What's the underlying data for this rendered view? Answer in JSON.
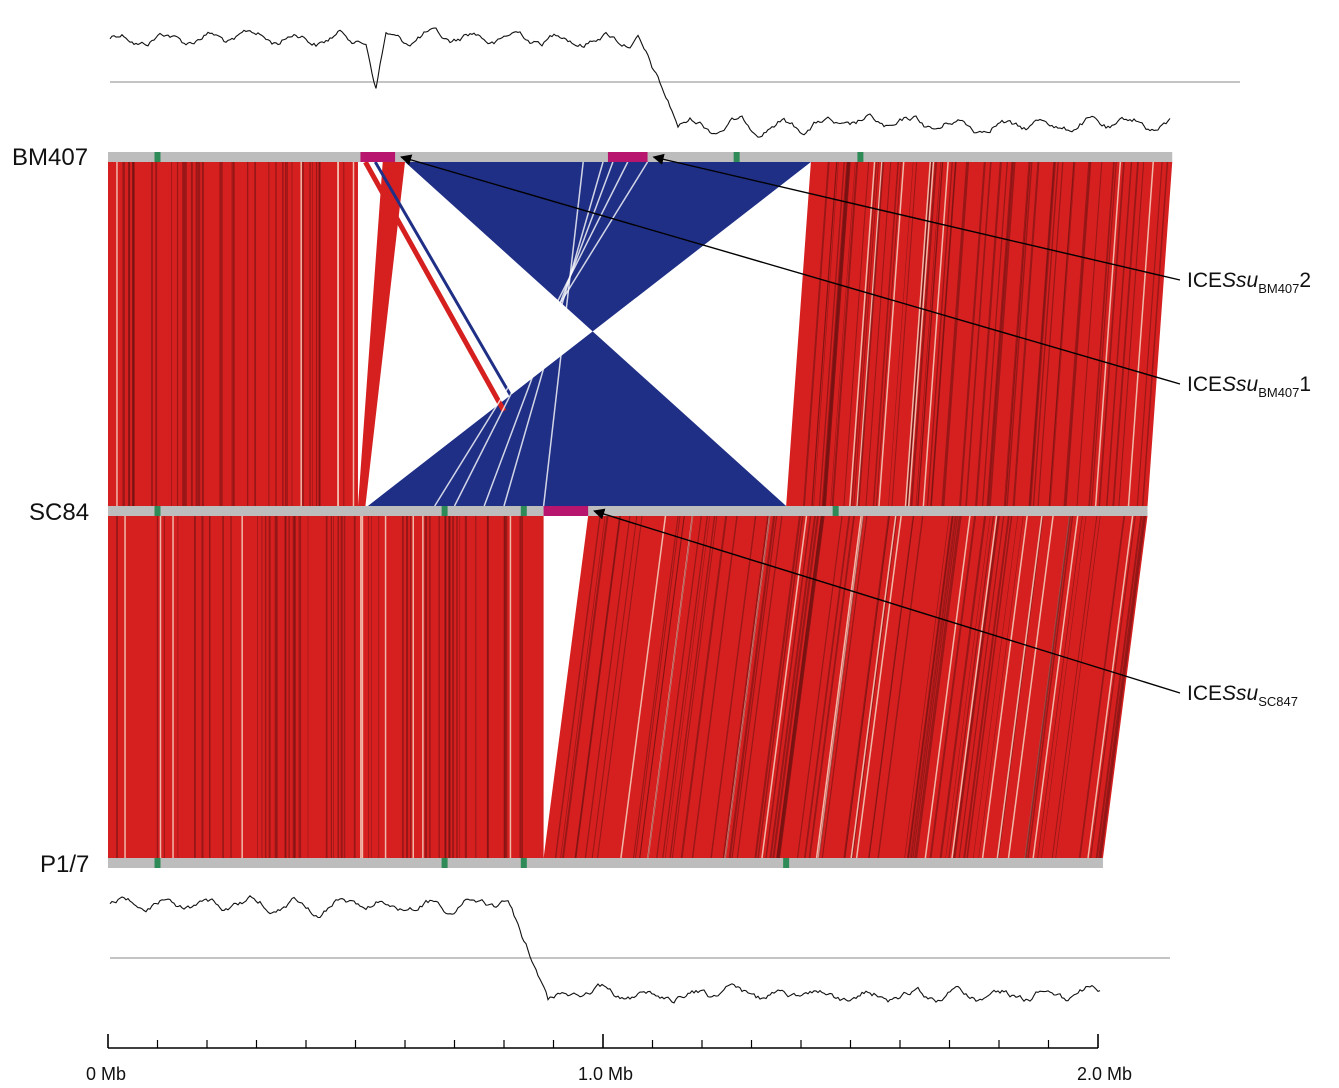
{
  "genomes": [
    {
      "id": "bm407",
      "label": "BM407",
      "length_mb": 2.15,
      "marker_positions_mb": [
        0.1,
        1.27,
        1.52
      ]
    },
    {
      "id": "sc84",
      "label": "SC84",
      "length_mb": 2.1,
      "marker_positions_mb": [
        0.1,
        0.68,
        0.84,
        1.47
      ]
    },
    {
      "id": "p17",
      "label": "P1/7",
      "length_mb": 2.01,
      "marker_positions_mb": [
        0.1,
        0.68,
        0.84,
        1.37
      ]
    }
  ],
  "elements": [
    {
      "genome": "bm407",
      "start_mb": 0.51,
      "end_mb": 0.58,
      "name_pre": "ICE",
      "name_ital": "Ssu",
      "name_sub": "BM407",
      "name_suf": "1"
    },
    {
      "genome": "bm407",
      "start_mb": 1.01,
      "end_mb": 1.09,
      "name_pre": "ICE",
      "name_ital": "Ssu",
      "name_sub": "BM407",
      "name_suf": "2"
    },
    {
      "genome": "sc84",
      "start_mb": 0.88,
      "end_mb": 0.97,
      "name_pre": "ICE",
      "name_ital": "Ssu",
      "name_sub": "SC847",
      "name_suf": ""
    }
  ],
  "colors": {
    "forward_match": "#d62020",
    "inverted_match": "#1f2f86",
    "backbone": "#bdbdbd",
    "element": "#b8156e",
    "marker": "#2e8b57"
  },
  "axis": {
    "ticks": [
      {
        "value": 0,
        "label": "0 Mb"
      },
      {
        "value": 1,
        "label": "1.0 Mb"
      },
      {
        "value": 2,
        "label": "2.0 Mb"
      }
    ],
    "minor_step_mb": 0.1
  }
}
